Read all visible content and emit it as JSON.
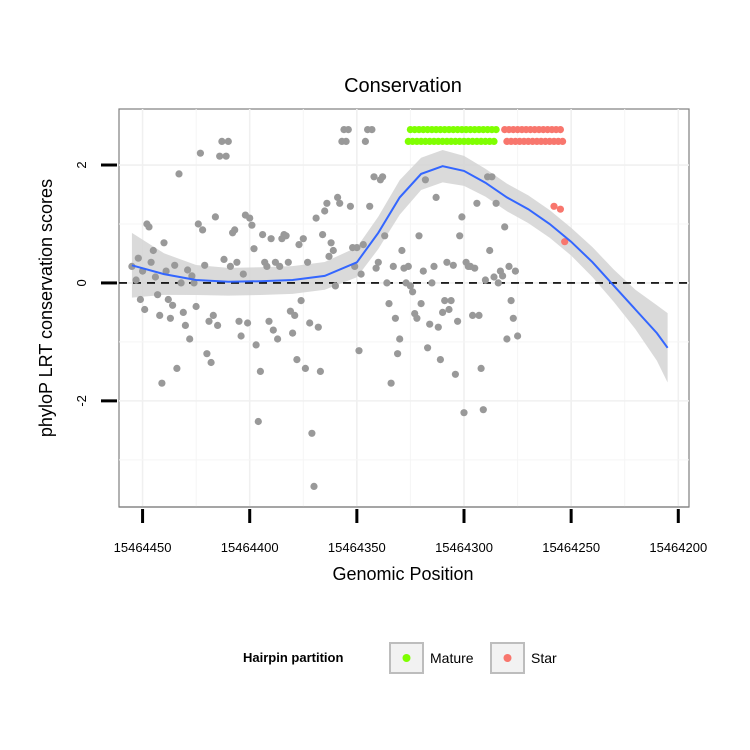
{
  "chart_data": {
    "type": "scatter",
    "title": "Conservation",
    "xlabel": "Genomic Position",
    "ylabel": "phyloP LRT conservation scores",
    "x_reversed": true,
    "xlim": [
      15464461,
      15464195
    ],
    "ylim": [
      -3.8,
      2.95
    ],
    "x_ticks": [
      15464450,
      15464400,
      15464350,
      15464300,
      15464250,
      15464200
    ],
    "x_tick_labels": [
      "15464450",
      "15464400",
      "15464350",
      "15464300",
      "15464250",
      "15464200"
    ],
    "y_ticks": [
      2,
      0,
      -2
    ],
    "y_tick_labels": [
      "2",
      "0",
      "-2"
    ],
    "hline_y": 0,
    "legend": {
      "title": "Hairpin partition",
      "position": "bottom",
      "entries": [
        {
          "label": "Mature",
          "color": "#7fff00"
        },
        {
          "label": "Star",
          "color": "#f8766d"
        }
      ]
    },
    "colors": {
      "other": "#999999",
      "mature": "#7fff00",
      "star": "#f8766d",
      "smooth": "#3366ff",
      "band": "#d4d4d4"
    },
    "series": [
      {
        "name": "Other",
        "points": [
          [
            15464455,
            0.28
          ],
          [
            15464453,
            0.05
          ],
          [
            15464452,
            0.42
          ],
          [
            15464451,
            -0.28
          ],
          [
            15464450,
            0.2
          ],
          [
            15464449,
            -0.45
          ],
          [
            15464448,
            1.0
          ],
          [
            15464447,
            0.95
          ],
          [
            15464446,
            0.35
          ],
          [
            15464445,
            0.55
          ],
          [
            15464444,
            0.1
          ],
          [
            15464443,
            -0.2
          ],
          [
            15464442,
            -0.55
          ],
          [
            15464441,
            -1.7
          ],
          [
            15464440,
            0.68
          ],
          [
            15464439,
            0.2
          ],
          [
            15464438,
            -0.28
          ],
          [
            15464437,
            -0.6
          ],
          [
            15464436,
            -0.38
          ],
          [
            15464435,
            0.3
          ],
          [
            15464434,
            -1.45
          ],
          [
            15464433,
            1.85
          ],
          [
            15464432,
            0.0
          ],
          [
            15464431,
            -0.5
          ],
          [
            15464430,
            -0.72
          ],
          [
            15464429,
            0.22
          ],
          [
            15464428,
            -0.95
          ],
          [
            15464427,
            0.12
          ],
          [
            15464426,
            0.0
          ],
          [
            15464425,
            -0.4
          ],
          [
            15464424,
            1.0
          ],
          [
            15464423,
            2.2
          ],
          [
            15464422,
            0.9
          ],
          [
            15464421,
            0.3
          ],
          [
            15464420,
            -1.2
          ],
          [
            15464419,
            -0.65
          ],
          [
            15464418,
            -1.35
          ],
          [
            15464417,
            -0.55
          ],
          [
            15464416,
            1.12
          ],
          [
            15464415,
            -0.72
          ],
          [
            15464414,
            2.15
          ],
          [
            15464413,
            2.4
          ],
          [
            15464412,
            0.4
          ],
          [
            15464411,
            2.15
          ],
          [
            15464410,
            2.4
          ],
          [
            15464409,
            0.28
          ],
          [
            15464408,
            0.85
          ],
          [
            15464407,
            0.9
          ],
          [
            15464406,
            0.35
          ],
          [
            15464405,
            -0.65
          ],
          [
            15464404,
            -0.9
          ],
          [
            15464403,
            0.15
          ],
          [
            15464402,
            1.15
          ],
          [
            15464401,
            -0.68
          ],
          [
            15464400,
            1.1
          ],
          [
            15464399,
            0.98
          ],
          [
            15464398,
            0.58
          ],
          [
            15464397,
            -1.05
          ],
          [
            15464396,
            -2.35
          ],
          [
            15464395,
            -1.5
          ],
          [
            15464394,
            0.82
          ],
          [
            15464393,
            0.35
          ],
          [
            15464392,
            0.28
          ],
          [
            15464391,
            -0.65
          ],
          [
            15464390,
            0.75
          ],
          [
            15464389,
            -0.8
          ],
          [
            15464388,
            0.35
          ],
          [
            15464387,
            -0.95
          ],
          [
            15464386,
            0.28
          ],
          [
            15464385,
            0.75
          ],
          [
            15464384,
            0.82
          ],
          [
            15464383,
            0.8
          ],
          [
            15464382,
            0.35
          ],
          [
            15464381,
            -0.48
          ],
          [
            15464380,
            -0.85
          ],
          [
            15464379,
            -0.55
          ],
          [
            15464378,
            -1.3
          ],
          [
            15464377,
            0.65
          ],
          [
            15464376,
            -0.3
          ],
          [
            15464375,
            0.75
          ],
          [
            15464374,
            -1.45
          ],
          [
            15464373,
            0.35
          ],
          [
            15464372,
            -0.68
          ],
          [
            15464371,
            -2.55
          ],
          [
            15464370,
            -3.45
          ],
          [
            15464369,
            1.1
          ],
          [
            15464368,
            -0.75
          ],
          [
            15464367,
            -1.5
          ],
          [
            15464366,
            0.82
          ],
          [
            15464365,
            1.22
          ],
          [
            15464364,
            1.35
          ],
          [
            15464363,
            0.45
          ],
          [
            15464362,
            0.68
          ],
          [
            15464361,
            0.55
          ],
          [
            15464360,
            -0.05
          ],
          [
            15464359,
            1.45
          ],
          [
            15464358,
            1.35
          ],
          [
            15464357,
            2.4
          ],
          [
            15464356,
            2.6
          ],
          [
            15464355,
            2.4
          ],
          [
            15464354,
            2.6
          ],
          [
            15464353,
            1.3
          ],
          [
            15464352,
            0.6
          ],
          [
            15464351,
            0.28
          ],
          [
            15464350,
            0.6
          ],
          [
            15464349,
            -1.15
          ],
          [
            15464348,
            0.15
          ],
          [
            15464347,
            0.65
          ],
          [
            15464346,
            2.4
          ],
          [
            15464345,
            2.6
          ],
          [
            15464344,
            1.3
          ],
          [
            15464343,
            2.6
          ],
          [
            15464342,
            1.8
          ],
          [
            15464341,
            0.25
          ],
          [
            15464340,
            0.35
          ],
          [
            15464339,
            1.75
          ],
          [
            15464338,
            1.8
          ],
          [
            15464337,
            0.8
          ],
          [
            15464336,
            0.0
          ],
          [
            15464335,
            -0.35
          ],
          [
            15464334,
            -1.7
          ],
          [
            15464333,
            0.28
          ],
          [
            15464332,
            -0.6
          ],
          [
            15464331,
            -1.2
          ],
          [
            15464330,
            -0.95
          ],
          [
            15464329,
            0.55
          ],
          [
            15464328,
            0.25
          ],
          [
            15464327,
            0.0
          ],
          [
            15464326,
            0.28
          ],
          [
            15464325,
            -0.05
          ],
          [
            15464324,
            -0.15
          ],
          [
            15464323,
            -0.52
          ],
          [
            15464322,
            -0.6
          ],
          [
            15464321,
            0.8
          ],
          [
            15464320,
            -0.35
          ],
          [
            15464319,
            0.2
          ],
          [
            15464318,
            1.75
          ],
          [
            15464317,
            -1.1
          ],
          [
            15464316,
            -0.7
          ],
          [
            15464315,
            0.0
          ],
          [
            15464314,
            0.28
          ],
          [
            15464313,
            1.45
          ],
          [
            15464312,
            -0.75
          ],
          [
            15464311,
            -1.3
          ],
          [
            15464310,
            -0.5
          ],
          [
            15464309,
            -0.3
          ],
          [
            15464308,
            0.35
          ],
          [
            15464307,
            -0.45
          ],
          [
            15464306,
            -0.3
          ],
          [
            15464305,
            0.3
          ],
          [
            15464304,
            -1.55
          ],
          [
            15464303,
            -0.65
          ],
          [
            15464302,
            0.8
          ],
          [
            15464301,
            1.12
          ],
          [
            15464300,
            -2.2
          ],
          [
            15464299,
            0.35
          ],
          [
            15464298,
            0.28
          ],
          [
            15464297,
            0.28
          ],
          [
            15464296,
            -0.55
          ],
          [
            15464295,
            0.25
          ],
          [
            15464294,
            1.35
          ],
          [
            15464293,
            -0.55
          ],
          [
            15464292,
            -1.45
          ],
          [
            15464291,
            -2.15
          ],
          [
            15464290,
            0.05
          ],
          [
            15464289,
            1.8
          ],
          [
            15464288,
            0.55
          ],
          [
            15464287,
            1.8
          ],
          [
            15464286,
            0.1
          ],
          [
            15464285,
            1.35
          ],
          [
            15464284,
            0.0
          ],
          [
            15464283,
            0.2
          ],
          [
            15464282,
            0.12
          ],
          [
            15464281,
            0.95
          ],
          [
            15464280,
            -0.95
          ],
          [
            15464279,
            0.28
          ],
          [
            15464278,
            -0.3
          ],
          [
            15464277,
            -0.6
          ],
          [
            15464276,
            0.2
          ],
          [
            15464275,
            -0.9
          ]
        ]
      },
      {
        "name": "Mature",
        "points": [
          [
            15464326,
            2.4
          ],
          [
            15464325,
            2.6
          ],
          [
            15464324,
            2.4
          ],
          [
            15464323,
            2.6
          ],
          [
            15464322,
            2.4
          ],
          [
            15464321,
            2.6
          ],
          [
            15464320,
            2.4
          ],
          [
            15464319,
            2.6
          ],
          [
            15464318,
            2.4
          ],
          [
            15464317,
            2.6
          ],
          [
            15464316,
            2.4
          ],
          [
            15464315,
            2.6
          ],
          [
            15464314,
            2.4
          ],
          [
            15464313,
            2.6
          ],
          [
            15464312,
            2.4
          ],
          [
            15464311,
            2.6
          ],
          [
            15464310,
            2.4
          ],
          [
            15464309,
            2.6
          ],
          [
            15464308,
            2.4
          ],
          [
            15464307,
            2.6
          ],
          [
            15464306,
            2.4
          ],
          [
            15464305,
            2.6
          ],
          [
            15464304,
            2.4
          ],
          [
            15464303,
            2.6
          ],
          [
            15464302,
            2.4
          ],
          [
            15464301,
            2.6
          ],
          [
            15464300,
            2.4
          ],
          [
            15464299,
            2.6
          ],
          [
            15464298,
            2.4
          ],
          [
            15464297,
            2.6
          ],
          [
            15464296,
            2.4
          ],
          [
            15464295,
            2.6
          ],
          [
            15464294,
            2.4
          ],
          [
            15464293,
            2.6
          ],
          [
            15464292,
            2.4
          ],
          [
            15464291,
            2.6
          ],
          [
            15464290,
            2.4
          ],
          [
            15464289,
            2.6
          ],
          [
            15464288,
            2.4
          ],
          [
            15464287,
            2.6
          ],
          [
            15464286,
            2.4
          ],
          [
            15464285,
            2.6
          ]
        ]
      },
      {
        "name": "Star",
        "points": [
          [
            15464281,
            2.6
          ],
          [
            15464280,
            2.4
          ],
          [
            15464279,
            2.6
          ],
          [
            15464278,
            2.4
          ],
          [
            15464277,
            2.6
          ],
          [
            15464276,
            2.4
          ],
          [
            15464275,
            2.6
          ],
          [
            15464274,
            2.4
          ],
          [
            15464273,
            2.6
          ],
          [
            15464272,
            2.4
          ],
          [
            15464271,
            2.6
          ],
          [
            15464270,
            2.4
          ],
          [
            15464269,
            2.6
          ],
          [
            15464268,
            2.4
          ],
          [
            15464267,
            2.6
          ],
          [
            15464266,
            2.4
          ],
          [
            15464265,
            2.6
          ],
          [
            15464264,
            2.4
          ],
          [
            15464263,
            2.6
          ],
          [
            15464262,
            2.4
          ],
          [
            15464261,
            2.6
          ],
          [
            15464260,
            2.4
          ],
          [
            15464259,
            2.6
          ],
          [
            15464258,
            2.4
          ],
          [
            15464257,
            2.6
          ],
          [
            15464256,
            2.4
          ],
          [
            15464255,
            2.6
          ],
          [
            15464254,
            2.4
          ],
          [
            15464258,
            1.3
          ],
          [
            15464255,
            1.25
          ],
          [
            15464253,
            0.7
          ]
        ]
      }
    ],
    "smooth": {
      "x": [
        15464455,
        15464440,
        15464425,
        15464410,
        15464395,
        15464380,
        15464365,
        15464350,
        15464340,
        15464330,
        15464320,
        15464310,
        15464300,
        15464290,
        15464280,
        15464270,
        15464260,
        15464250,
        15464240,
        15464230,
        15464220,
        15464210,
        15464205
      ],
      "y": [
        0.3,
        0.15,
        0.05,
        0.02,
        0.03,
        0.05,
        0.12,
        0.35,
        0.85,
        1.45,
        1.85,
        1.98,
        1.9,
        1.7,
        1.45,
        1.25,
        1.0,
        0.7,
        0.35,
        -0.05,
        -0.45,
        -0.85,
        -1.1
      ],
      "se": [
        0.28,
        0.18,
        0.13,
        0.12,
        0.12,
        0.12,
        0.12,
        0.13,
        0.14,
        0.15,
        0.14,
        0.14,
        0.13,
        0.12,
        0.12,
        0.12,
        0.12,
        0.12,
        0.13,
        0.14,
        0.17,
        0.24,
        0.3
      ]
    }
  }
}
